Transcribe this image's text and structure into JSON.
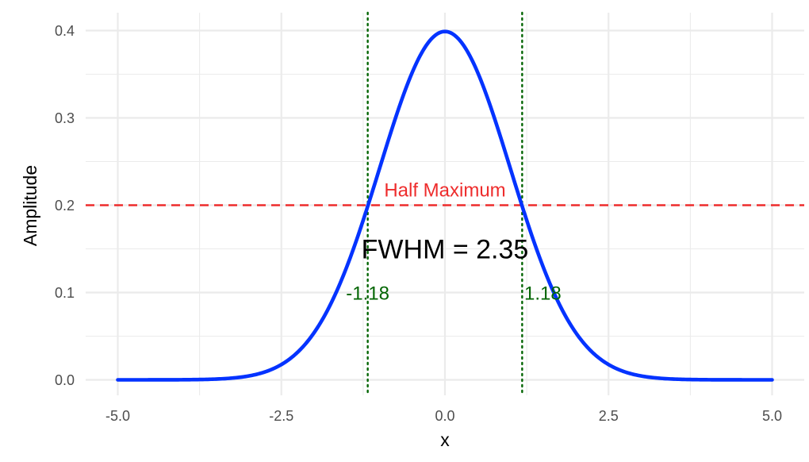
{
  "chart_data": {
    "type": "line",
    "xlabel": "x",
    "ylabel": "Amplitude",
    "xlim": [
      -5,
      5
    ],
    "ylim": [
      0,
      0.4
    ],
    "x_ticks": [
      -5.0,
      -2.5,
      0.0,
      2.5,
      5.0
    ],
    "x_tick_labels": [
      "-5.0",
      "-2.5",
      "0.0",
      "2.5",
      "5.0"
    ],
    "y_ticks": [
      0.0,
      0.1,
      0.2,
      0.3,
      0.4
    ],
    "y_tick_labels": [
      "0.0",
      "0.1",
      "0.2",
      "0.3",
      "0.4"
    ],
    "grid": true,
    "series": [
      {
        "color": "#0433FF",
        "x": [
          -5.0,
          -4.5,
          -4.0,
          -3.5,
          -3.0,
          -2.75,
          -2.5,
          -2.25,
          -2.0,
          -1.75,
          -1.5,
          -1.25,
          -1.0,
          -0.75,
          -0.5,
          -0.25,
          0.0,
          0.25,
          0.5,
          0.75,
          1.0,
          1.25,
          1.5,
          1.75,
          2.0,
          2.25,
          2.5,
          2.75,
          3.0,
          3.5,
          4.0,
          4.5,
          5.0
        ],
        "y": [
          0.0,
          0.0,
          0.0001,
          0.0009,
          0.0044,
          0.0091,
          0.0175,
          0.0317,
          0.054,
          0.0863,
          0.1295,
          0.1826,
          0.242,
          0.3011,
          0.3521,
          0.3867,
          0.3989,
          0.3867,
          0.3521,
          0.3011,
          0.242,
          0.1826,
          0.1295,
          0.0863,
          0.054,
          0.0317,
          0.0175,
          0.0091,
          0.0044,
          0.0009,
          0.0001,
          0.0,
          0.0
        ]
      }
    ],
    "half_maximum": {
      "y": 0.2,
      "label": "Half Maximum",
      "color": "#EE2C2C"
    },
    "fwhm_bounds": {
      "left": -1.18,
      "right": 1.18,
      "left_label": "-1.18",
      "right_label": "1.18",
      "color": "#006400"
    },
    "annotation": {
      "text": "FWHM = 2.35",
      "x": 0.0,
      "y": 0.15,
      "color": "#000000"
    }
  }
}
